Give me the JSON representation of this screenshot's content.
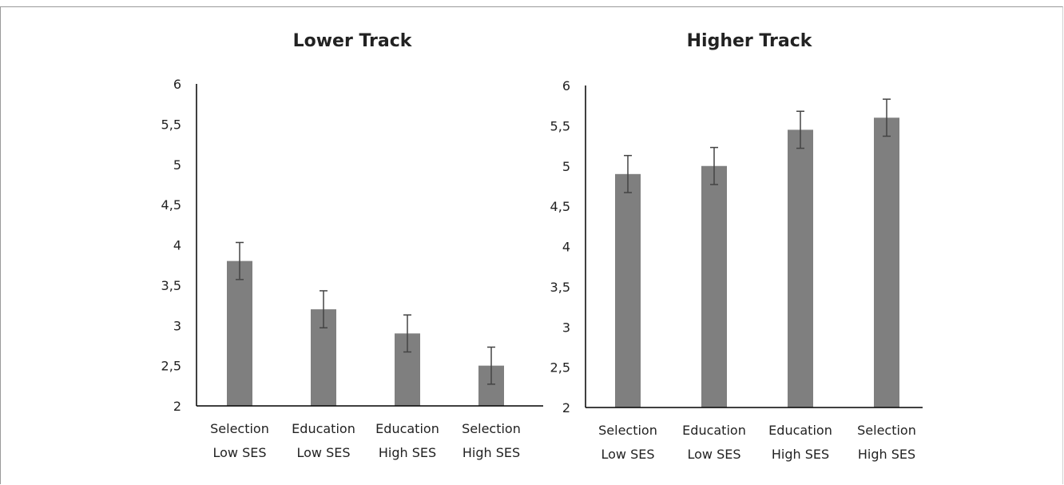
{
  "colors": {
    "bar": "#7f7f7f",
    "axis": "#000000",
    "error": "#444444"
  },
  "chart_data": [
    {
      "type": "bar",
      "title": "Lower Track",
      "categories": [
        [
          "Selection",
          "Low SES"
        ],
        [
          "Education",
          "Low SES"
        ],
        [
          "Education",
          "High SES"
        ],
        [
          "Selection",
          "High SES"
        ]
      ],
      "values": [
        3.8,
        3.2,
        2.9,
        2.5
      ],
      "error": [
        0.23,
        0.23,
        0.23,
        0.23
      ],
      "ylim": [
        2,
        6
      ],
      "yticks": [
        "2",
        "2,5",
        "3",
        "3,5",
        "4",
        "4,5",
        "5",
        "5,5",
        "6"
      ],
      "ytick_values": [
        2,
        2.5,
        3,
        3.5,
        4,
        4.5,
        5,
        5.5,
        6
      ],
      "grid": false,
      "xlabel": "",
      "ylabel": ""
    },
    {
      "type": "bar",
      "title": "Higher Track",
      "categories": [
        [
          "Selection",
          "Low SES"
        ],
        [
          "Education",
          "Low SES"
        ],
        [
          "Education",
          "High SES"
        ],
        [
          "Selection",
          "High SES"
        ]
      ],
      "values": [
        4.9,
        5.0,
        5.45,
        5.6
      ],
      "error": [
        0.23,
        0.23,
        0.23,
        0.23
      ],
      "ylim": [
        2,
        6
      ],
      "yticks": [
        "2",
        "2,5",
        "3",
        "3,5",
        "4",
        "4,5",
        "5",
        "5,5",
        "6"
      ],
      "ytick_values": [
        2,
        2.5,
        3,
        3.5,
        4,
        4.5,
        5,
        5.5,
        6
      ],
      "grid": false,
      "xlabel": "",
      "ylabel": ""
    }
  ]
}
